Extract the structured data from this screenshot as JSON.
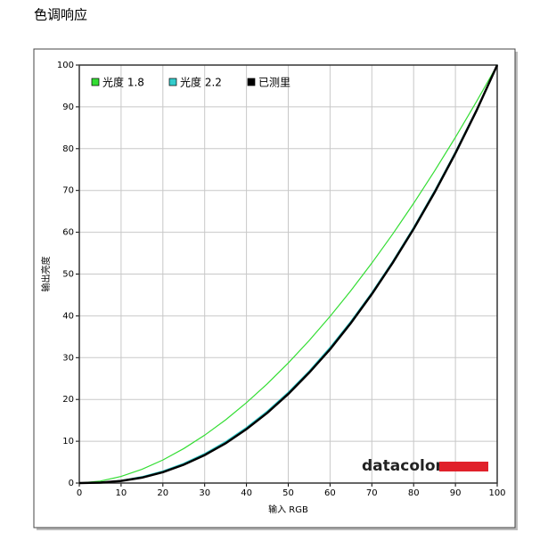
{
  "page_title": "色调响应",
  "chart_data": {
    "type": "line",
    "x": [
      0,
      5,
      10,
      15,
      20,
      25,
      30,
      35,
      40,
      45,
      50,
      55,
      60,
      65,
      70,
      75,
      80,
      85,
      90,
      95,
      100
    ],
    "series": [
      {
        "name": "光度 1.8",
        "color": "#33dd33",
        "values": [
          0,
          0.46,
          1.58,
          3.29,
          5.52,
          8.25,
          11.45,
          15.11,
          19.22,
          23.76,
          28.72,
          34.09,
          39.87,
          46.05,
          52.63,
          59.58,
          66.92,
          74.64,
          82.72,
          91.18,
          100
        ]
      },
      {
        "name": "光度 2.2",
        "color": "#33cccc",
        "values": [
          0,
          0.14,
          0.63,
          1.54,
          2.9,
          4.74,
          7.07,
          9.93,
          13.32,
          17.26,
          21.76,
          26.84,
          32.5,
          38.76,
          45.62,
          53.1,
          61.21,
          69.94,
          79.31,
          89.33,
          100
        ]
      },
      {
        "name": "已测里",
        "color": "#000000",
        "values": [
          0,
          0.1,
          0.5,
          1.3,
          2.6,
          4.4,
          6.7,
          9.5,
          12.9,
          16.8,
          21.3,
          26.4,
          32.0,
          38.3,
          45.2,
          52.7,
          60.8,
          69.5,
          78.9,
          89.0,
          100
        ]
      }
    ],
    "xlabel": "输入 RGB",
    "ylabel": "输出亮度",
    "xlim": [
      0,
      100
    ],
    "ylim": [
      0,
      100
    ],
    "xticks": [
      0,
      10,
      20,
      30,
      40,
      50,
      60,
      70,
      80,
      90,
      100
    ],
    "yticks": [
      0,
      10,
      20,
      30,
      40,
      50,
      60,
      70,
      80,
      90,
      100
    ],
    "grid": true,
    "legend": "top-left",
    "logo": "datacolor"
  }
}
